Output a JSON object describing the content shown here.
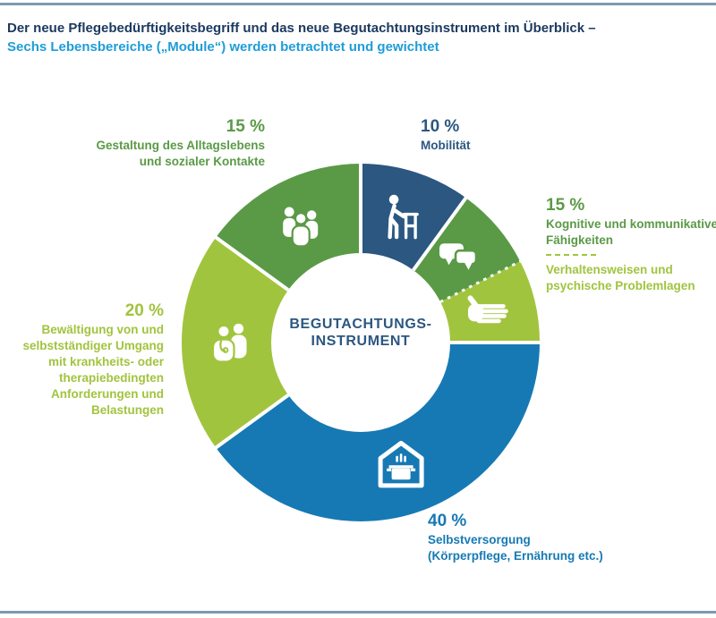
{
  "palette": {
    "dark_blue": "#2b5781",
    "medium_green": "#5a9a46",
    "light_green": "#a1c43e",
    "blue": "#1679b4",
    "title_navy": "#1c3a60",
    "title_light_blue": "#1f9cd8",
    "rule_steel_blue": "#7e9ab1",
    "background": "#ffffff",
    "segment_divider": "#ffffff"
  },
  "chart_data": {
    "type": "pie",
    "subtype": "donut",
    "title": "Der neue Pflegebedürftigkeitsbegriff und das neue Begutachtungsinstrument im Überblick –",
    "subtitle": "Sechs Lebensbereiche („Module“) werden betrachtet und gewichtet",
    "unit": "%",
    "values_are_percent": true,
    "legend": "none",
    "labels_position": "outside-callouts",
    "center_label_line1": "BEGUTACHTUNGS-",
    "center_label_line2": "INSTRUMENT",
    "geometry": {
      "outer_radius": 200,
      "inner_radius": 100,
      "icon_radius": 146,
      "start_angle_deg": 0,
      "direction": "clockwise"
    },
    "segments": [
      {
        "id": "mobilitaet",
        "label": "Mobilität",
        "value": 10,
        "color": "#2b5781",
        "icon": "person-with-walker-icon",
        "divider_before": "solid"
      },
      {
        "id": "kognitive-faehigkeiten",
        "label": "Kognitive und kommunikative Fähigkeiten",
        "value": 7.5,
        "color": "#5a9a46",
        "icon": "speech-bubbles-icon",
        "divider_before": "solid"
      },
      {
        "id": "verhaltensweisen",
        "label": "Verhaltensweisen und psychische Problemlagen",
        "value": 7.5,
        "color": "#a1c43e",
        "icon": "hand-icon",
        "divider_before": "dashed"
      },
      {
        "id": "selbstversorgung",
        "label": "Selbstversorgung (Körperpflege, Ernährung etc.)",
        "value": 40,
        "color": "#1679b4",
        "icon": "house-with-cooking-pot-icon",
        "divider_before": "solid"
      },
      {
        "id": "krankheitsbewaeltigung",
        "label": "Bewältigung von und selbstständiger Umgang mit krankheits- oder therapiebedingten Anforderungen und Belastungen",
        "value": 20,
        "color": "#a1c43e",
        "icon": "doctor-and-patient-icon",
        "divider_before": "solid"
      },
      {
        "id": "alltagsleben-kontakte",
        "label": "Gestaltung des Alltagslebens und sozialer Kontakte",
        "value": 15,
        "color": "#5a9a46",
        "icon": "people-group-icon",
        "divider_before": "solid"
      }
    ],
    "callouts": {
      "gestaltung": {
        "pct": "15 %",
        "lines": [
          "Gestaltung des Alltagslebens",
          "und sozialer Kontakte"
        ],
        "color": "#5a9a46"
      },
      "mobilitaet": {
        "pct": "10 %",
        "lines": [
          "Mobilität"
        ],
        "color": "#2b5781"
      },
      "kognitive": {
        "pct": "15 %",
        "lines": [
          "Kognitive und kommunikative",
          "Fähigkeiten"
        ],
        "lines2": [
          "Verhaltensweisen und",
          "psychische Problemlagen"
        ],
        "color": "#5a9a46",
        "color2": "#a1c43e"
      },
      "bewaeltigung": {
        "pct": "20 %",
        "lines": [
          "Bewältigung von und",
          "selbstständiger Umgang",
          "mit krankheits- oder",
          "therapiebedingten",
          "Anforderungen und",
          "Belastungen"
        ],
        "color": "#a1c43e"
      },
      "selbstversorgung": {
        "pct": "40 %",
        "lines": [
          "Selbstversorgung",
          "(Körperpflege, Ernährung etc.)"
        ],
        "color": "#1679b4"
      }
    }
  }
}
